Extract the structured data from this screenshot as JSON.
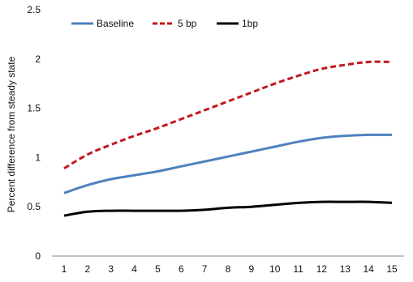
{
  "chart_data": {
    "type": "line",
    "title": "",
    "xlabel": "",
    "ylabel": "Percent difference from steady state",
    "x": [
      1,
      2,
      3,
      4,
      5,
      6,
      7,
      8,
      9,
      10,
      11,
      12,
      13,
      14,
      15
    ],
    "ylim": [
      0,
      2.5
    ],
    "y_ticks": [
      "0",
      "0.5",
      "1",
      "1.5",
      "2",
      "2.5"
    ],
    "x_ticks": [
      "1",
      "2",
      "3",
      "4",
      "5",
      "6",
      "7",
      "8",
      "9",
      "10",
      "11",
      "12",
      "13",
      "14",
      "15"
    ],
    "grid": false,
    "legend_position": "top-left",
    "series": [
      {
        "name": "Baseline",
        "color": "#4f81bd",
        "style": "solid",
        "values": [
          0.64,
          0.72,
          0.78,
          0.82,
          0.86,
          0.91,
          0.96,
          1.01,
          1.06,
          1.11,
          1.16,
          1.2,
          1.22,
          1.23,
          1.23
        ]
      },
      {
        "name": "5 bp",
        "color": "#c0181b",
        "style": "dashed",
        "values": [
          0.89,
          1.03,
          1.13,
          1.22,
          1.3,
          1.39,
          1.48,
          1.57,
          1.66,
          1.75,
          1.83,
          1.9,
          1.94,
          1.97,
          1.97
        ]
      },
      {
        "name": "1bp",
        "color": "#000000",
        "style": "solid",
        "values": [
          0.41,
          0.45,
          0.46,
          0.46,
          0.46,
          0.46,
          0.47,
          0.49,
          0.5,
          0.52,
          0.54,
          0.55,
          0.55,
          0.55,
          0.54
        ]
      }
    ]
  }
}
